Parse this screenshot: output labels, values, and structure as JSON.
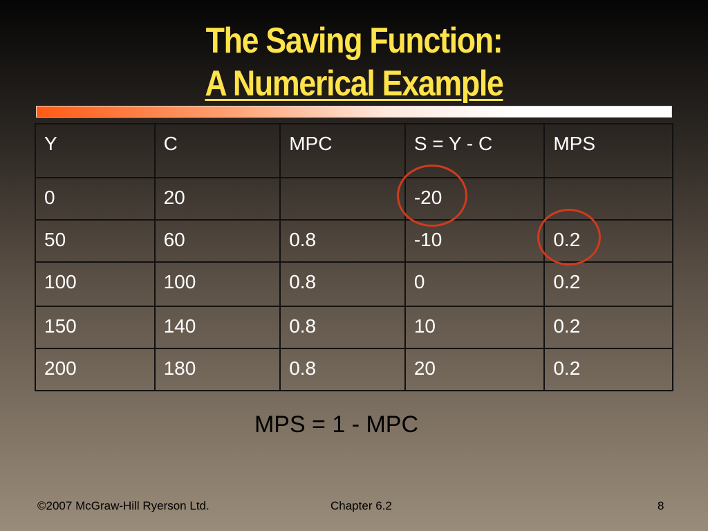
{
  "slide": {
    "title_line1": "The Saving Function:",
    "title_line2": "A Numerical Example"
  },
  "table": {
    "headers": [
      "Y",
      "C",
      "MPC",
      "S = Y - C",
      "MPS"
    ],
    "rows": [
      [
        "0",
        "20",
        "",
        "-20",
        ""
      ],
      [
        "50",
        "60",
        "0.8",
        "-10",
        "0.2"
      ],
      [
        "100",
        "100",
        "0.8",
        "0",
        "0.2"
      ],
      [
        "150",
        "140",
        "0.8",
        "10",
        "0.2"
      ],
      [
        "200",
        "180",
        "0.8",
        "20",
        "0.2"
      ]
    ]
  },
  "formula": "MPS = 1 - MPC",
  "footer": {
    "copyright": "©2007 McGraw-Hill Ryerson Ltd.",
    "chapter": "Chapter 6.2",
    "page_number": "8"
  },
  "colors": {
    "title": "#ffe34a",
    "accent_bar": "#ff5a14",
    "highlight_circle": "#d03a1e",
    "table_text": "#ffffff"
  }
}
